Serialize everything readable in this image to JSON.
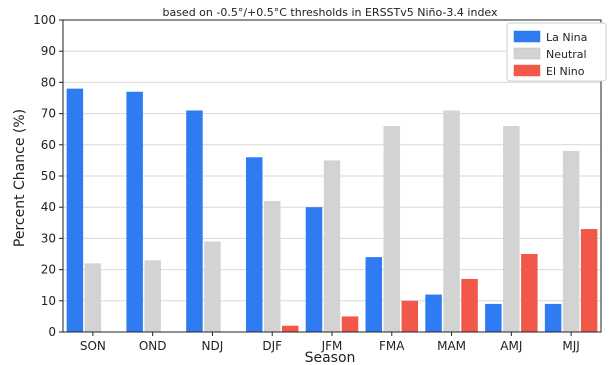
{
  "chart_data": {
    "type": "bar",
    "title": "based on -0.5°/+0.5°C thresholds in ERSSTv5 Niño-3.4 index",
    "xlabel": "Season",
    "ylabel": "Percent Chance (%)",
    "ylim": [
      0,
      100
    ],
    "yticks": [
      0,
      10,
      20,
      30,
      40,
      50,
      60,
      70,
      80,
      90,
      100
    ],
    "grid": true,
    "legend_position": "top-right",
    "categories": [
      "SON",
      "OND",
      "NDJ",
      "DJF",
      "JFM",
      "FMA",
      "MAM",
      "AMJ",
      "MJJ"
    ],
    "series": [
      {
        "name": "La Nina",
        "color": "#2f7bf2",
        "values": [
          78,
          77,
          71,
          56,
          40,
          24,
          12,
          9,
          9
        ]
      },
      {
        "name": "Neutral",
        "color": "#d3d3d3",
        "values": [
          22,
          23,
          29,
          42,
          55,
          66,
          71,
          66,
          58
        ]
      },
      {
        "name": "El Nino",
        "color": "#f2584a",
        "values": [
          0,
          0,
          0,
          2,
          5,
          10,
          17,
          25,
          33
        ]
      }
    ]
  }
}
